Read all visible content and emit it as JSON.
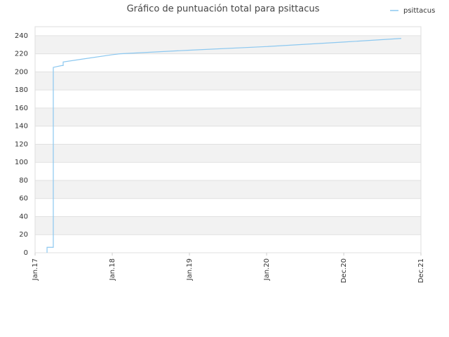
{
  "chart_data": {
    "type": "line",
    "title": "Gráfico de puntuación total para psittacus",
    "x": [
      0.155,
      0.155,
      0.236,
      0.236,
      0.345,
      0.364,
      0.364,
      0.6,
      1.0,
      1.1,
      2.0,
      3.0,
      4.0,
      4.745
    ],
    "series": [
      {
        "name": "psittacus",
        "color": "#8cc8f0",
        "values": [
          0,
          6,
          6,
          205,
          207,
          207,
          211,
          214,
          219,
          220,
          224,
          228,
          233,
          237
        ]
      }
    ],
    "xlim": [
      0,
      5
    ],
    "xticks": [
      {
        "value": 0,
        "label": "Jan.17"
      },
      {
        "value": 1,
        "label": "Jan.18"
      },
      {
        "value": 2,
        "label": "Jan.19"
      },
      {
        "value": 3,
        "label": "Jan.20"
      },
      {
        "value": 4,
        "label": "Dec.20"
      },
      {
        "value": 5,
        "label": "Dec.21"
      }
    ],
    "ylim": [
      0,
      250
    ],
    "yticks": [
      0,
      20,
      40,
      60,
      80,
      100,
      120,
      140,
      160,
      180,
      200,
      220,
      240
    ],
    "grid": true,
    "legend": "top-right"
  }
}
